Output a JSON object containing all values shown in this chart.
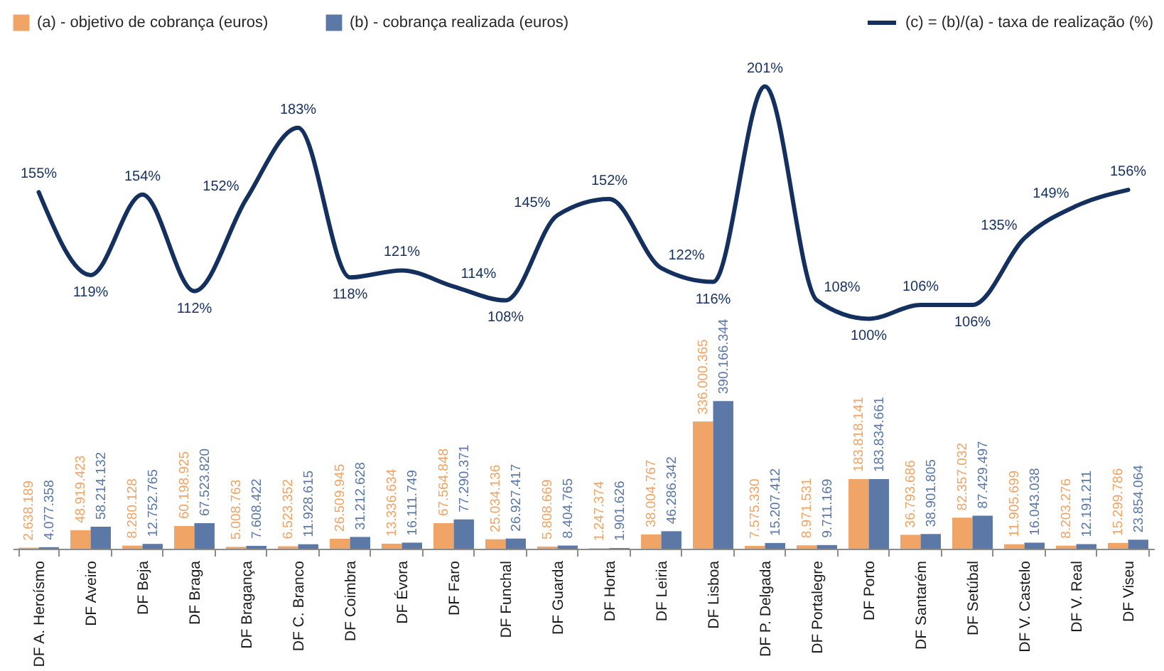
{
  "chart_data": [
    {
      "type": "bar",
      "legend": "top left",
      "categories": [
        "DF A. Heroísmo",
        "DF Aveiro",
        "DF Beja",
        "DF Braga",
        "DF Bragança",
        "DF C. Branco",
        "DF Coimbra",
        "DF Évora",
        "DF Faro",
        "DF Funchal",
        "DF Guarda",
        "DF Horta",
        "DF Leiria",
        "DF Lisboa",
        "DF P. Delgada",
        "DF Portalegre",
        "DF Porto",
        "DF Santarém",
        "DF Setúbal",
        "DF V. Castelo",
        "DF V. Real",
        "DF Viseu"
      ],
      "series": [
        {
          "name": "(a) - objetivo de cobrança (euros)",
          "color": "#f0a466",
          "values": [
            2638189,
            48919423,
            8280128,
            60198925,
            5008763,
            6523352,
            26509945,
            13336634,
            67564848,
            25034136,
            5808669,
            1247374,
            38004767,
            336000365,
            7575330,
            8971531,
            183818141,
            36793686,
            82357032,
            11905699,
            8203276,
            15299786
          ],
          "value_labels": [
            "2.638.189",
            "48.919.423",
            "8.280.128",
            "60.198.925",
            "5.008.763",
            "6.523.352",
            "26.509.945",
            "13.336.634",
            "67.564.848",
            "25.034.136",
            "5.808.669",
            "1.247.374",
            "38.004.767",
            "336.000.365",
            "7.575.330",
            "8.971.531",
            "183.818.141",
            "36.793.686",
            "82.357.032",
            "11.905.699",
            "8.203.276",
            "15.299.786"
          ]
        },
        {
          "name": "(b) - cobrança realizada (euros)",
          "color": "#5b78a6",
          "values": [
            4077358,
            58214132,
            12752765,
            67523820,
            7608422,
            11928615,
            31212628,
            16111749,
            77290371,
            26927417,
            8404765,
            1901626,
            46286342,
            390166344,
            15207412,
            9711169,
            183834661,
            38901805,
            87429497,
            16043038,
            12191211,
            23854064
          ],
          "value_labels": [
            "4.077.358",
            "58.214.132",
            "12.752.765",
            "67.523.820",
            "7.608.422",
            "11.928.615",
            "31.212.628",
            "16.111.749",
            "77.290.371",
            "26.927.417",
            "8.404.765",
            "1.901.626",
            "46.286.342",
            "390.166.344",
            "15.207.412",
            "9.711.169",
            "183.834.661",
            "38.901.805",
            "87.429.497",
            "16.043.038",
            "12.191.211",
            "23.854.064"
          ]
        }
      ]
    },
    {
      "type": "line",
      "legend": "top right",
      "categories": [
        null,
        null,
        null,
        null,
        null,
        null,
        null,
        null,
        null,
        null,
        null,
        null,
        null,
        null,
        null,
        null,
        null,
        null,
        null,
        null,
        null,
        null
      ],
      "series": [
        {
          "name": "(c) = (b)/(a) - taxa de realização (%)",
          "color": "#14305e",
          "values": [
            155,
            119,
            154,
            112,
            152,
            183,
            118,
            121,
            114,
            108,
            145,
            152,
            122,
            116,
            201,
            108,
            100,
            106,
            106,
            135,
            149,
            156
          ],
          "value_labels": [
            "155%",
            "119%",
            "154%",
            "112%",
            "152%",
            "183%",
            "118%",
            "121%",
            "114%",
            "108%",
            "145%",
            "152%",
            "122%",
            "116%",
            "201%",
            "108%",
            "100%",
            "106%",
            "106%",
            "135%",
            "149%",
            "156%"
          ]
        }
      ]
    }
  ]
}
